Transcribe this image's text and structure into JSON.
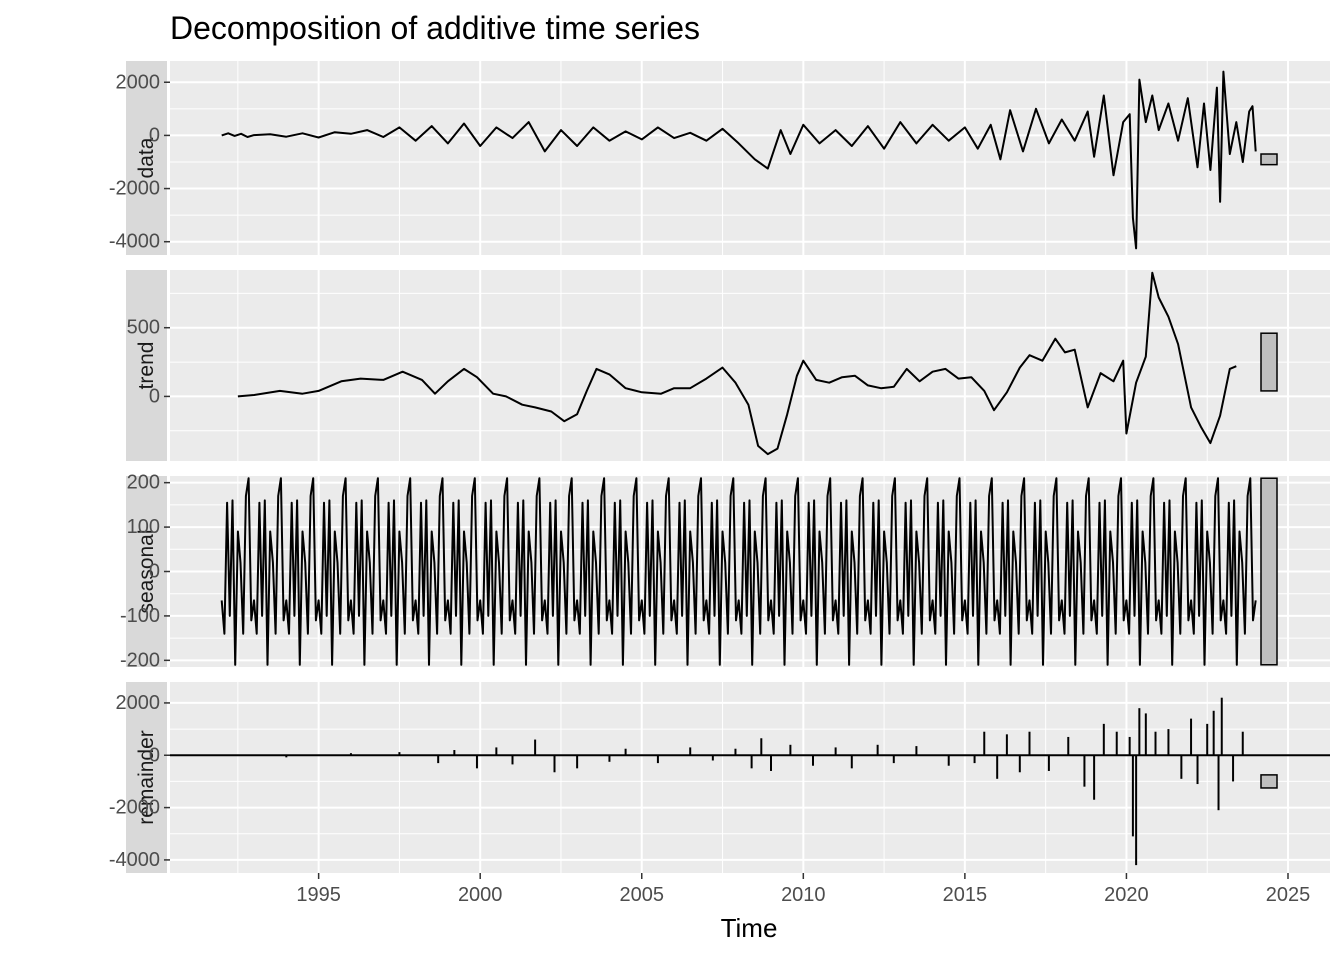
{
  "chart_data": {
    "type": "line",
    "title": "Decomposition of additive time series",
    "xlabel": "Time",
    "xlim": [
      1990.4,
      2026.3
    ],
    "x_ticks": [
      1995,
      2000,
      2005,
      2010,
      2015,
      2020,
      2025
    ],
    "x_tick_labels": [
      "1995",
      "2000",
      "2005",
      "2010",
      "2015",
      "2020",
      "2025"
    ],
    "panel_background": "#ebebeb",
    "grid_color": "#ffffff",
    "strip_color": "#d9d9d9",
    "line_color": "#000000",
    "range_bar_fill": "#bfbfbf",
    "grid": true,
    "panels": [
      {
        "name": "data",
        "style": "line",
        "ylim": [
          -4500,
          2800
        ],
        "y_ticks": [
          2000,
          0,
          -2000,
          -4000
        ],
        "y_tick_labels": [
          "2000",
          "0",
          "-2000",
          "-4000"
        ],
        "range_bar": [
          -1100,
          -700
        ],
        "points": [
          [
            1992.0,
            0
          ],
          [
            1992.2,
            80
          ],
          [
            1992.4,
            -20
          ],
          [
            1992.6,
            60
          ],
          [
            1992.8,
            -60
          ],
          [
            1993.0,
            10
          ],
          [
            1993.5,
            40
          ],
          [
            1994.0,
            -50
          ],
          [
            1994.5,
            80
          ],
          [
            1995.0,
            -80
          ],
          [
            1995.5,
            120
          ],
          [
            1996.0,
            60
          ],
          [
            1996.5,
            200
          ],
          [
            1997.0,
            -60
          ],
          [
            1997.5,
            300
          ],
          [
            1998.0,
            -200
          ],
          [
            1998.5,
            350
          ],
          [
            1999.0,
            -300
          ],
          [
            1999.5,
            450
          ],
          [
            2000.0,
            -400
          ],
          [
            2000.5,
            300
          ],
          [
            2001.0,
            -100
          ],
          [
            2001.5,
            500
          ],
          [
            2002.0,
            -600
          ],
          [
            2002.5,
            200
          ],
          [
            2003.0,
            -400
          ],
          [
            2003.5,
            300
          ],
          [
            2004.0,
            -200
          ],
          [
            2004.5,
            150
          ],
          [
            2005.0,
            -150
          ],
          [
            2005.5,
            300
          ],
          [
            2006.0,
            -100
          ],
          [
            2006.5,
            100
          ],
          [
            2007.0,
            -200
          ],
          [
            2007.5,
            250
          ],
          [
            2008.0,
            -300
          ],
          [
            2008.5,
            -900
          ],
          [
            2008.9,
            -1250
          ],
          [
            2009.3,
            200
          ],
          [
            2009.6,
            -700
          ],
          [
            2010.0,
            400
          ],
          [
            2010.5,
            -300
          ],
          [
            2011.0,
            200
          ],
          [
            2011.5,
            -400
          ],
          [
            2012.0,
            350
          ],
          [
            2012.5,
            -500
          ],
          [
            2013.0,
            500
          ],
          [
            2013.5,
            -300
          ],
          [
            2014.0,
            400
          ],
          [
            2014.5,
            -200
          ],
          [
            2015.0,
            300
          ],
          [
            2015.4,
            -500
          ],
          [
            2015.8,
            400
          ],
          [
            2016.1,
            -900
          ],
          [
            2016.4,
            950
          ],
          [
            2016.8,
            -600
          ],
          [
            2017.2,
            1000
          ],
          [
            2017.6,
            -300
          ],
          [
            2018.0,
            600
          ],
          [
            2018.4,
            -200
          ],
          [
            2018.8,
            900
          ],
          [
            2019.0,
            -800
          ],
          [
            2019.3,
            1500
          ],
          [
            2019.6,
            -1500
          ],
          [
            2019.9,
            500
          ],
          [
            2020.1,
            800
          ],
          [
            2020.2,
            -3100
          ],
          [
            2020.3,
            -4250
          ],
          [
            2020.4,
            2100
          ],
          [
            2020.6,
            500
          ],
          [
            2020.8,
            1500
          ],
          [
            2021.0,
            200
          ],
          [
            2021.3,
            1200
          ],
          [
            2021.6,
            -200
          ],
          [
            2021.9,
            1400
          ],
          [
            2022.2,
            -1200
          ],
          [
            2022.4,
            1200
          ],
          [
            2022.6,
            -1300
          ],
          [
            2022.8,
            1800
          ],
          [
            2022.9,
            -2500
          ],
          [
            2023.0,
            2400
          ],
          [
            2023.2,
            -700
          ],
          [
            2023.4,
            500
          ],
          [
            2023.6,
            -1000
          ],
          [
            2023.8,
            900
          ],
          [
            2023.9,
            1100
          ],
          [
            2024.0,
            -600
          ]
        ]
      },
      {
        "name": "trend",
        "style": "line",
        "ylim": [
          -470,
          920
        ],
        "y_ticks": [
          500,
          0
        ],
        "y_tick_labels": [
          "500",
          "0"
        ],
        "range_bar": [
          40,
          460
        ],
        "points": [
          [
            1992.5,
            0
          ],
          [
            1993.0,
            10
          ],
          [
            1993.8,
            40
          ],
          [
            1994.5,
            20
          ],
          [
            1995.0,
            40
          ],
          [
            1995.7,
            110
          ],
          [
            1996.3,
            130
          ],
          [
            1997.0,
            120
          ],
          [
            1997.6,
            180
          ],
          [
            1998.2,
            120
          ],
          [
            1998.6,
            20
          ],
          [
            1999.0,
            110
          ],
          [
            1999.5,
            200
          ],
          [
            1999.9,
            140
          ],
          [
            2000.4,
            20
          ],
          [
            2000.8,
            0
          ],
          [
            2001.3,
            -60
          ],
          [
            2001.7,
            -80
          ],
          [
            2002.2,
            -110
          ],
          [
            2002.6,
            -180
          ],
          [
            2003.0,
            -130
          ],
          [
            2003.3,
            40
          ],
          [
            2003.6,
            200
          ],
          [
            2004.0,
            160
          ],
          [
            2004.5,
            60
          ],
          [
            2005.0,
            30
          ],
          [
            2005.6,
            20
          ],
          [
            2006.0,
            60
          ],
          [
            2006.5,
            60
          ],
          [
            2007.0,
            130
          ],
          [
            2007.5,
            210
          ],
          [
            2007.9,
            100
          ],
          [
            2008.3,
            -60
          ],
          [
            2008.6,
            -360
          ],
          [
            2008.9,
            -420
          ],
          [
            2009.2,
            -380
          ],
          [
            2009.5,
            -130
          ],
          [
            2009.8,
            150
          ],
          [
            2010.0,
            260
          ],
          [
            2010.4,
            120
          ],
          [
            2010.8,
            100
          ],
          [
            2011.2,
            140
          ],
          [
            2011.6,
            150
          ],
          [
            2012.0,
            80
          ],
          [
            2012.4,
            60
          ],
          [
            2012.8,
            70
          ],
          [
            2013.2,
            200
          ],
          [
            2013.6,
            110
          ],
          [
            2014.0,
            180
          ],
          [
            2014.4,
            200
          ],
          [
            2014.8,
            130
          ],
          [
            2015.2,
            140
          ],
          [
            2015.6,
            40
          ],
          [
            2015.9,
            -100
          ],
          [
            2016.3,
            30
          ],
          [
            2016.7,
            210
          ],
          [
            2017.0,
            300
          ],
          [
            2017.4,
            260
          ],
          [
            2017.8,
            420
          ],
          [
            2018.1,
            320
          ],
          [
            2018.4,
            340
          ],
          [
            2018.8,
            -80
          ],
          [
            2019.2,
            170
          ],
          [
            2019.6,
            110
          ],
          [
            2019.9,
            260
          ],
          [
            2020.0,
            -270
          ],
          [
            2020.3,
            100
          ],
          [
            2020.6,
            290
          ],
          [
            2020.8,
            900
          ],
          [
            2021.0,
            720
          ],
          [
            2021.3,
            580
          ],
          [
            2021.6,
            380
          ],
          [
            2022.0,
            -80
          ],
          [
            2022.3,
            -220
          ],
          [
            2022.6,
            -340
          ],
          [
            2022.9,
            -140
          ],
          [
            2023.2,
            200
          ],
          [
            2023.4,
            220
          ]
        ]
      },
      {
        "name": "seasonal",
        "style": "seasonal",
        "ylim": [
          -215,
          215
        ],
        "y_ticks": [
          200,
          100,
          0,
          -100,
          -200
        ],
        "y_tick_labels": [
          "200",
          "100",
          "0",
          "-100",
          "-200"
        ],
        "range_bar": [
          -210,
          210
        ],
        "start": 1992.0,
        "end": 2024.0,
        "pattern": [
          -65,
          -140,
          155,
          -100,
          160,
          -210,
          90,
          20,
          -140,
          170,
          210,
          -110
        ]
      },
      {
        "name": "remainder",
        "style": "bars",
        "ylim": [
          -4500,
          2800
        ],
        "y_ticks": [
          2000,
          0,
          -2000,
          -4000
        ],
        "y_tick_labels": [
          "2000",
          "0",
          "-2000",
          "-4000"
        ],
        "range_bar": [
          -1250,
          -750
        ],
        "points": [
          [
            1994.0,
            -80
          ],
          [
            1996.0,
            80
          ],
          [
            1997.5,
            120
          ],
          [
            1998.7,
            -300
          ],
          [
            1999.2,
            200
          ],
          [
            1999.9,
            -500
          ],
          [
            2000.5,
            300
          ],
          [
            2001.0,
            -350
          ],
          [
            2001.7,
            600
          ],
          [
            2002.3,
            -650
          ],
          [
            2003.0,
            -500
          ],
          [
            2004.0,
            -250
          ],
          [
            2004.5,
            250
          ],
          [
            2005.5,
            -300
          ],
          [
            2006.5,
            300
          ],
          [
            2007.2,
            -200
          ],
          [
            2007.9,
            250
          ],
          [
            2008.4,
            -500
          ],
          [
            2008.7,
            650
          ],
          [
            2009.0,
            -600
          ],
          [
            2009.6,
            400
          ],
          [
            2010.3,
            -400
          ],
          [
            2011.0,
            300
          ],
          [
            2011.5,
            -500
          ],
          [
            2012.3,
            400
          ],
          [
            2012.8,
            -300
          ],
          [
            2013.5,
            350
          ],
          [
            2014.5,
            -400
          ],
          [
            2015.3,
            -300
          ],
          [
            2015.6,
            900
          ],
          [
            2016.0,
            -900
          ],
          [
            2016.3,
            800
          ],
          [
            2016.7,
            -650
          ],
          [
            2017.0,
            900
          ],
          [
            2017.6,
            -600
          ],
          [
            2018.2,
            700
          ],
          [
            2018.7,
            -1200
          ],
          [
            2019.0,
            -1700
          ],
          [
            2019.3,
            1200
          ],
          [
            2019.7,
            900
          ],
          [
            2020.1,
            700
          ],
          [
            2020.2,
            -3100
          ],
          [
            2020.3,
            -4200
          ],
          [
            2020.4,
            1800
          ],
          [
            2020.6,
            1600
          ],
          [
            2020.9,
            900
          ],
          [
            2021.3,
            1000
          ],
          [
            2021.7,
            -900
          ],
          [
            2022.0,
            1400
          ],
          [
            2022.2,
            -1100
          ],
          [
            2022.5,
            1200
          ],
          [
            2022.7,
            1700
          ],
          [
            2022.85,
            -2100
          ],
          [
            2022.95,
            2200
          ],
          [
            2023.3,
            -1000
          ],
          [
            2023.6,
            900
          ]
        ]
      }
    ]
  }
}
